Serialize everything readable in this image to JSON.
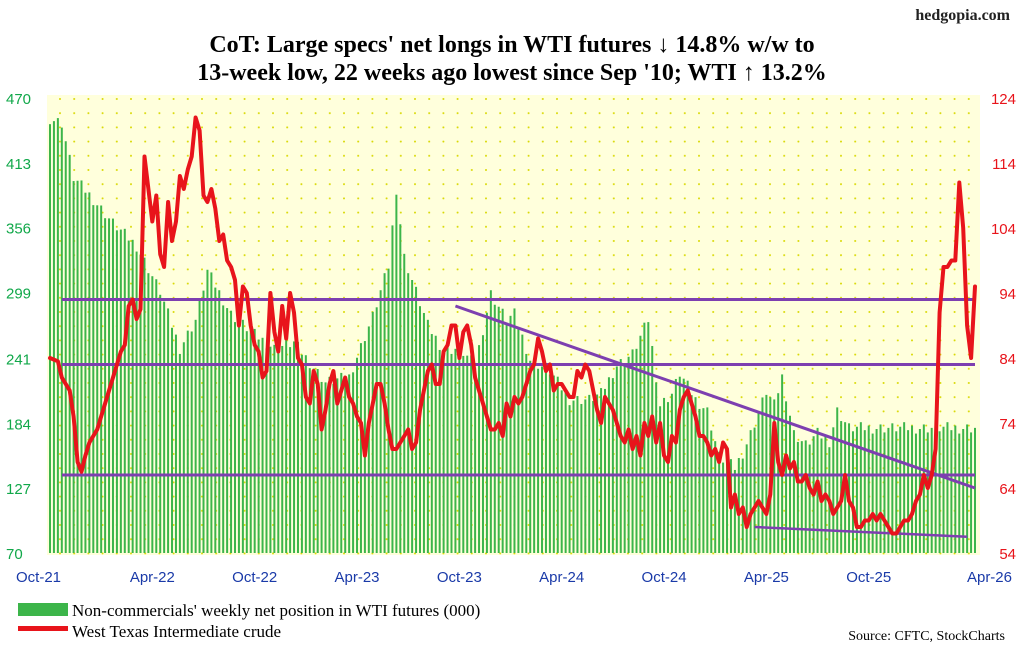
{
  "brand": "hedgopia.com",
  "title_line1": "CoT: Large specs' net longs in WTI futures ↓ 14.8% w/w to",
  "title_line2": "13-week low, 22 weeks ago lowest since Sep '10; WTI ↑ 13.2%",
  "source": "Source: CFTC, StockCharts",
  "legend": [
    {
      "label": "Non-commercials' weekly net position in WTI futures (000)",
      "color": "#3cb54a"
    },
    {
      "label": "West Texas Intermediate crude",
      "color": "#e8141b"
    }
  ],
  "chart_data": {
    "type": "bar+line",
    "x_tick_labels": [
      "Oct-21",
      "Apr-22",
      "Oct-22",
      "Apr-23",
      "Oct-23",
      "Apr-24",
      "Oct-24",
      "Apr-25",
      "Oct-25",
      "Apr-26"
    ],
    "y_left": {
      "ticks": [
        470,
        413,
        356,
        299,
        241,
        184,
        127,
        70
      ],
      "range": [
        70,
        470
      ]
    },
    "y_right": {
      "ticks": [
        124,
        114,
        104,
        94,
        84,
        74,
        64,
        54
      ],
      "range": [
        54,
        124
      ]
    },
    "grid": "dotted",
    "colors": {
      "bars": "#3cb54a",
      "wti": "#e8141b",
      "lines": "#7d3fb0",
      "bg": "#ffffdc",
      "dot": "#dede00"
    },
    "horizontal_levels_right_axis": [
      93,
      83,
      66
    ],
    "trendlines_right_axis": [
      {
        "from": [
          "Oct-23",
          92
        ],
        "to": [
          "Apr-26",
          64
        ]
      },
      {
        "from": [
          "Apr-25",
          58
        ],
        "to": [
          "Apr-26",
          56.5
        ]
      }
    ],
    "net_position_series": {
      "name": "Non-commercials' weekly net position in WTI futures (000)",
      "keypoints": [
        [
          0,
          452
        ],
        [
          3,
          448
        ],
        [
          6,
          400
        ],
        [
          10,
          385
        ],
        [
          16,
          360
        ],
        [
          22,
          340
        ],
        [
          28,
          300
        ],
        [
          33,
          250
        ],
        [
          37,
          275
        ],
        [
          40,
          318
        ],
        [
          46,
          280
        ],
        [
          52,
          262
        ],
        [
          57,
          250
        ],
        [
          62,
          255
        ],
        [
          70,
          220
        ],
        [
          76,
          225
        ],
        [
          82,
          278
        ],
        [
          86,
          322
        ],
        [
          88,
          390
        ],
        [
          90,
          330
        ],
        [
          96,
          270
        ],
        [
          100,
          248
        ],
        [
          104,
          250
        ],
        [
          108,
          235
        ],
        [
          112,
          298
        ],
        [
          116,
          275
        ],
        [
          118,
          280
        ],
        [
          122,
          240
        ],
        [
          127,
          230
        ],
        [
          132,
          205
        ],
        [
          137,
          205
        ],
        [
          140,
          210
        ],
        [
          144,
          235
        ],
        [
          148,
          245
        ],
        [
          152,
          275
        ],
        [
          155,
          200
        ],
        [
          158,
          210
        ],
        [
          160,
          228
        ],
        [
          164,
          205
        ],
        [
          167,
          195
        ],
        [
          170,
          155
        ],
        [
          174,
          145
        ],
        [
          176,
          158
        ],
        [
          178,
          175
        ],
        [
          182,
          212
        ],
        [
          184,
          200
        ],
        [
          186,
          225
        ],
        [
          189,
          175
        ],
        [
          192,
          165
        ],
        [
          195,
          175
        ],
        [
          198,
          168
        ],
        [
          200,
          195
        ],
        [
          203,
          180
        ]
      ]
    },
    "wti_series": {
      "name": "West Texas Intermediate crude",
      "keypoints": [
        [
          0,
          84
        ],
        [
          2,
          83.5
        ],
        [
          3,
          81
        ],
        [
          5,
          79
        ],
        [
          6,
          75
        ],
        [
          7,
          68
        ],
        [
          8,
          66.5
        ],
        [
          9,
          69
        ],
        [
          10,
          71
        ],
        [
          12,
          73
        ],
        [
          14,
          77
        ],
        [
          16,
          81
        ],
        [
          18,
          85
        ],
        [
          19,
          86
        ],
        [
          20,
          92
        ],
        [
          21,
          93
        ],
        [
          22,
          90
        ],
        [
          23,
          91.5
        ],
        [
          24,
          115
        ],
        [
          25,
          110
        ],
        [
          26,
          105
        ],
        [
          27,
          109
        ],
        [
          28,
          100
        ],
        [
          29,
          98
        ],
        [
          30,
          108
        ],
        [
          31,
          102
        ],
        [
          32,
          105
        ],
        [
          33,
          112
        ],
        [
          34,
          110
        ],
        [
          35,
          113
        ],
        [
          36,
          115
        ],
        [
          37,
          121
        ],
        [
          38,
          119
        ],
        [
          39,
          109
        ],
        [
          40,
          108
        ],
        [
          41,
          110
        ],
        [
          42,
          107
        ],
        [
          43,
          102
        ],
        [
          44,
          103
        ],
        [
          45,
          99
        ],
        [
          46,
          98
        ],
        [
          47,
          96
        ],
        [
          48,
          89
        ],
        [
          49,
          95
        ],
        [
          50,
          94
        ],
        [
          51,
          89
        ],
        [
          52,
          86
        ],
        [
          53,
          85
        ],
        [
          54,
          81
        ],
        [
          55,
          82
        ],
        [
          56,
          94
        ],
        [
          57,
          88
        ],
        [
          58,
          85
        ],
        [
          59,
          92
        ],
        [
          60,
          87
        ],
        [
          61,
          94
        ],
        [
          62,
          91
        ],
        [
          63,
          84
        ],
        [
          64,
          83
        ],
        [
          65,
          78
        ],
        [
          66,
          77
        ],
        [
          67,
          82
        ],
        [
          68,
          80
        ],
        [
          69,
          73
        ],
        [
          70,
          76
        ],
        [
          71,
          80
        ],
        [
          72,
          82
        ],
        [
          73,
          77
        ],
        [
          74,
          79
        ],
        [
          75,
          81
        ],
        [
          76,
          78
        ],
        [
          77,
          77
        ],
        [
          78,
          75
        ],
        [
          79,
          74
        ],
        [
          80,
          69
        ],
        [
          81,
          74
        ],
        [
          82,
          77
        ],
        [
          83,
          80
        ],
        [
          84,
          80
        ],
        [
          85,
          77
        ],
        [
          86,
          73
        ],
        [
          87,
          70
        ],
        [
          88,
          70
        ],
        [
          89,
          71
        ],
        [
          90,
          72
        ],
        [
          91,
          73
        ],
        [
          92,
          70
        ],
        [
          93,
          71
        ],
        [
          94,
          76
        ],
        [
          95,
          79
        ],
        [
          96,
          82
        ],
        [
          97,
          83
        ],
        [
          98,
          80
        ],
        [
          99,
          80
        ],
        [
          100,
          85
        ],
        [
          101,
          86
        ],
        [
          102,
          89
        ],
        [
          103,
          89
        ],
        [
          104,
          84
        ],
        [
          105,
          88
        ],
        [
          106,
          89
        ],
        [
          107,
          86
        ],
        [
          108,
          81
        ],
        [
          109,
          79
        ],
        [
          110,
          77
        ],
        [
          111,
          75
        ],
        [
          112,
          73
        ],
        [
          113,
          73
        ],
        [
          114,
          74
        ],
        [
          115,
          72
        ],
        [
          116,
          77
        ],
        [
          117,
          75
        ],
        [
          118,
          78
        ],
        [
          119,
          77
        ],
        [
          120,
          78
        ],
        [
          121,
          80
        ],
        [
          122,
          82
        ],
        [
          123,
          83
        ],
        [
          124,
          87
        ],
        [
          125,
          85
        ],
        [
          126,
          82
        ],
        [
          127,
          83
        ],
        [
          128,
          79
        ],
        [
          129,
          80
        ],
        [
          130,
          80
        ],
        [
          131,
          79
        ],
        [
          132,
          78
        ],
        [
          133,
          78
        ],
        [
          134,
          82
        ],
        [
          135,
          81
        ],
        [
          136,
          83
        ],
        [
          137,
          82
        ],
        [
          138,
          79
        ],
        [
          139,
          76
        ],
        [
          140,
          74
        ],
        [
          141,
          78
        ],
        [
          142,
          77
        ],
        [
          143,
          76
        ],
        [
          144,
          74
        ],
        [
          145,
          72
        ],
        [
          146,
          71
        ],
        [
          147,
          73
        ],
        [
          148,
          70
        ],
        [
          149,
          72
        ],
        [
          150,
          69
        ],
        [
          151,
          74
        ],
        [
          152,
          72
        ],
        [
          153,
          75
        ],
        [
          154,
          71
        ],
        [
          155,
          74
        ],
        [
          156,
          69
        ],
        [
          157,
          68
        ],
        [
          158,
          72
        ],
        [
          159,
          71
        ],
        [
          160,
          76
        ],
        [
          161,
          78
        ],
        [
          162,
          79
        ],
        [
          163,
          77
        ],
        [
          164,
          75
        ],
        [
          165,
          72
        ],
        [
          166,
          72
        ],
        [
          167,
          71
        ],
        [
          168,
          69
        ],
        [
          169,
          70
        ],
        [
          170,
          68
        ],
        [
          171,
          71
        ],
        [
          172,
          70
        ],
        [
          173,
          61
        ],
        [
          174,
          63
        ],
        [
          175,
          60
        ],
        [
          176,
          61
        ],
        [
          177,
          58
        ],
        [
          178,
          60
        ],
        [
          179,
          61
        ],
        [
          180,
          62
        ],
        [
          181,
          61
        ],
        [
          182,
          60
        ],
        [
          183,
          63
        ],
        [
          184,
          74
        ],
        [
          185,
          68
        ],
        [
          186,
          66
        ],
        [
          187,
          69
        ],
        [
          188,
          67
        ],
        [
          189,
          68
        ],
        [
          190,
          65
        ],
        [
          191,
          65
        ],
        [
          192,
          66
        ],
        [
          193,
          64
        ],
        [
          194,
          63
        ],
        [
          195,
          65
        ],
        [
          196,
          62
        ],
        [
          197,
          63
        ],
        [
          198,
          62
        ],
        [
          199,
          60
        ],
        [
          200,
          61
        ],
        [
          201,
          62
        ],
        [
          202,
          66
        ],
        [
          203,
          62
        ],
        [
          204,
          61
        ],
        [
          205,
          58
        ],
        [
          206,
          58
        ],
        [
          207,
          59
        ],
        [
          208,
          59
        ],
        [
          209,
          60
        ],
        [
          210,
          59
        ],
        [
          211,
          60
        ],
        [
          212,
          59
        ],
        [
          213,
          58
        ],
        [
          214,
          57
        ],
        [
          215,
          57
        ],
        [
          216,
          58
        ],
        [
          217,
          59
        ],
        [
          218,
          59
        ],
        [
          219,
          60
        ],
        [
          220,
          62
        ],
        [
          221,
          63
        ],
        [
          222,
          66
        ],
        [
          223,
          64
        ],
        [
          224,
          66
        ],
        [
          225,
          70
        ],
        [
          226,
          91
        ],
        [
          227,
          98
        ],
        [
          228,
          98
        ],
        [
          229,
          99
        ],
        [
          230,
          99
        ],
        [
          231,
          111
        ],
        [
          232,
          104
        ],
        [
          233,
          89
        ],
        [
          234,
          84
        ],
        [
          235,
          95
        ]
      ]
    },
    "total_weeks": 236
  }
}
